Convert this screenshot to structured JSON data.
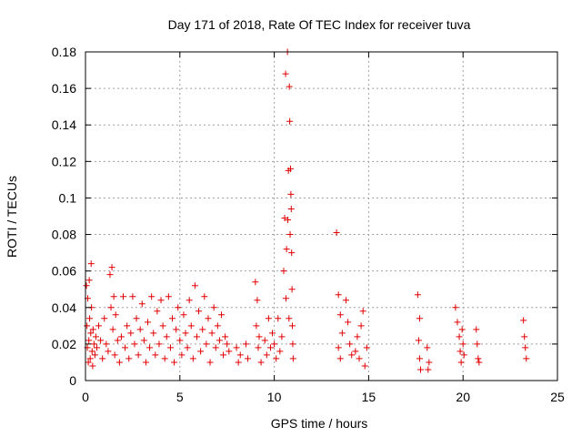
{
  "chart_data": {
    "type": "scatter",
    "title": "Day 171 of 2018, Rate Of TEC Index for receiver tuva",
    "xlabel": "GPS time / hours",
    "ylabel": "ROTI / TECUs",
    "xlim": [
      0,
      25
    ],
    "ylim": [
      0,
      0.18
    ],
    "x_ticks": [
      0,
      5,
      10,
      15,
      20,
      25
    ],
    "x_tick_labels": [
      "0",
      "5",
      "10",
      "15",
      "20",
      "25"
    ],
    "y_ticks": [
      0,
      0.02,
      0.04,
      0.06,
      0.08,
      0.1,
      0.12,
      0.14,
      0.16,
      0.18
    ],
    "y_tick_labels": [
      "0",
      "0.02",
      "0.04",
      "0.06",
      "0.08",
      "0.1",
      "0.12",
      "0.14",
      "0.16",
      "0.18"
    ],
    "grid": true,
    "marker": "+",
    "color": "#e00000",
    "series": [
      {
        "points": [
          [
            0.05,
            0.052
          ],
          [
            0.08,
            0.03
          ],
          [
            0.1,
            0.018
          ],
          [
            0.12,
            0.045
          ],
          [
            0.15,
            0.01
          ],
          [
            0.18,
            0.022
          ],
          [
            0.2,
            0.055
          ],
          [
            0.22,
            0.034
          ],
          [
            0.25,
            0.012
          ],
          [
            0.28,
            0.026
          ],
          [
            0.3,
            0.064
          ],
          [
            0.32,
            0.04
          ],
          [
            0.35,
            0.016
          ],
          [
            0.38,
            0.008
          ],
          [
            0.4,
            0.028
          ],
          [
            0.45,
            0.02
          ],
          [
            0.5,
            0.014
          ],
          [
            0.55,
            0.024
          ],
          [
            0.6,
            0.018
          ],
          [
            0.7,
            0.03
          ],
          [
            0.8,
            0.022
          ],
          [
            0.9,
            0.012
          ],
          [
            1.0,
            0.034
          ],
          [
            1.1,
            0.02
          ],
          [
            1.2,
            0.016
          ],
          [
            1.3,
            0.058
          ],
          [
            1.35,
            0.04
          ],
          [
            1.4,
            0.062
          ],
          [
            1.45,
            0.028
          ],
          [
            1.5,
            0.046
          ],
          [
            1.55,
            0.014
          ],
          [
            1.6,
            0.036
          ],
          [
            1.7,
            0.022
          ],
          [
            1.8,
            0.01
          ],
          [
            1.9,
            0.024
          ],
          [
            2.0,
            0.046
          ],
          [
            2.1,
            0.018
          ],
          [
            2.2,
            0.03
          ],
          [
            2.3,
            0.012
          ],
          [
            2.4,
            0.026
          ],
          [
            2.5,
            0.046
          ],
          [
            2.6,
            0.02
          ],
          [
            2.7,
            0.034
          ],
          [
            2.8,
            0.014
          ],
          [
            2.9,
            0.028
          ],
          [
            3.0,
            0.042
          ],
          [
            3.1,
            0.022
          ],
          [
            3.2,
            0.01
          ],
          [
            3.3,
            0.032
          ],
          [
            3.4,
            0.018
          ],
          [
            3.5,
            0.046
          ],
          [
            3.6,
            0.026
          ],
          [
            3.7,
            0.014
          ],
          [
            3.8,
            0.038
          ],
          [
            3.9,
            0.02
          ],
          [
            4.0,
            0.044
          ],
          [
            4.1,
            0.03
          ],
          [
            4.2,
            0.012
          ],
          [
            4.3,
            0.024
          ],
          [
            4.4,
            0.046
          ],
          [
            4.5,
            0.018
          ],
          [
            4.6,
            0.034
          ],
          [
            4.7,
            0.01
          ],
          [
            4.8,
            0.028
          ],
          [
            4.9,
            0.04
          ],
          [
            5.0,
            0.022
          ],
          [
            5.1,
            0.014
          ],
          [
            5.2,
            0.036
          ],
          [
            5.3,
            0.026
          ],
          [
            5.4,
            0.018
          ],
          [
            5.5,
            0.044
          ],
          [
            5.6,
            0.03
          ],
          [
            5.7,
            0.012
          ],
          [
            5.8,
            0.052
          ],
          [
            5.9,
            0.024
          ],
          [
            6.0,
            0.038
          ],
          [
            6.1,
            0.016
          ],
          [
            6.2,
            0.028
          ],
          [
            6.3,
            0.046
          ],
          [
            6.4,
            0.02
          ],
          [
            6.5,
            0.034
          ],
          [
            6.6,
            0.01
          ],
          [
            6.7,
            0.026
          ],
          [
            6.8,
            0.04
          ],
          [
            6.9,
            0.018
          ],
          [
            7.0,
            0.03
          ],
          [
            7.1,
            0.022
          ],
          [
            7.2,
            0.036
          ],
          [
            7.3,
            0.014
          ],
          [
            7.4,
            0.024
          ],
          [
            7.5,
            0.02
          ],
          [
            7.6,
            0.016
          ],
          [
            8.0,
            0.018
          ],
          [
            8.1,
            0.01
          ],
          [
            8.2,
            0.014
          ],
          [
            8.5,
            0.02
          ],
          [
            8.6,
            0.012
          ],
          [
            9.0,
            0.054
          ],
          [
            9.05,
            0.03
          ],
          [
            9.1,
            0.044
          ],
          [
            9.15,
            0.018
          ],
          [
            9.2,
            0.024
          ],
          [
            9.3,
            0.01
          ],
          [
            9.5,
            0.022
          ],
          [
            9.6,
            0.014
          ],
          [
            9.7,
            0.034
          ],
          [
            9.8,
            0.018
          ],
          [
            9.9,
            0.026
          ],
          [
            10.0,
            0.02
          ],
          [
            10.1,
            0.012
          ],
          [
            10.2,
            0.034
          ],
          [
            10.3,
            0.016
          ],
          [
            10.4,
            0.024
          ],
          [
            10.5,
            0.06
          ],
          [
            10.55,
            0.089
          ],
          [
            10.6,
            0.168
          ],
          [
            10.62,
            0.045
          ],
          [
            10.65,
            0.072
          ],
          [
            10.7,
            0.18
          ],
          [
            10.72,
            0.088
          ],
          [
            10.75,
            0.115
          ],
          [
            10.78,
            0.034
          ],
          [
            10.8,
            0.161
          ],
          [
            10.82,
            0.142
          ],
          [
            10.84,
            0.08
          ],
          [
            10.86,
            0.116
          ],
          [
            10.88,
            0.102
          ],
          [
            10.9,
            0.094
          ],
          [
            10.92,
            0.07
          ],
          [
            10.94,
            0.05
          ],
          [
            10.96,
            0.03
          ],
          [
            10.98,
            0.02
          ],
          [
            11.0,
            0.012
          ],
          [
            13.3,
            0.081
          ],
          [
            13.4,
            0.047
          ],
          [
            13.5,
            0.036
          ],
          [
            13.6,
            0.026
          ],
          [
            13.4,
            0.018
          ],
          [
            13.5,
            0.012
          ],
          [
            13.8,
            0.044
          ],
          [
            13.9,
            0.032
          ],
          [
            14.0,
            0.02
          ],
          [
            14.1,
            0.014
          ],
          [
            14.3,
            0.016
          ],
          [
            14.4,
            0.024
          ],
          [
            14.5,
            0.012
          ],
          [
            14.6,
            0.03
          ],
          [
            14.7,
            0.038
          ],
          [
            14.8,
            0.008
          ],
          [
            14.9,
            0.018
          ],
          [
            17.6,
            0.047
          ],
          [
            17.7,
            0.034
          ],
          [
            17.65,
            0.022
          ],
          [
            17.7,
            0.012
          ],
          [
            17.75,
            0.006
          ],
          [
            18.1,
            0.018
          ],
          [
            18.2,
            0.01
          ],
          [
            18.15,
            0.006
          ],
          [
            19.6,
            0.04
          ],
          [
            19.7,
            0.032
          ],
          [
            19.8,
            0.024
          ],
          [
            19.85,
            0.016
          ],
          [
            19.9,
            0.01
          ],
          [
            19.95,
            0.028
          ],
          [
            20.0,
            0.02
          ],
          [
            20.05,
            0.014
          ],
          [
            20.7,
            0.028
          ],
          [
            20.75,
            0.02
          ],
          [
            20.8,
            0.012
          ],
          [
            20.85,
            0.01
          ],
          [
            23.2,
            0.033
          ],
          [
            23.25,
            0.024
          ],
          [
            23.3,
            0.018
          ],
          [
            23.35,
            0.012
          ]
        ]
      }
    ]
  }
}
